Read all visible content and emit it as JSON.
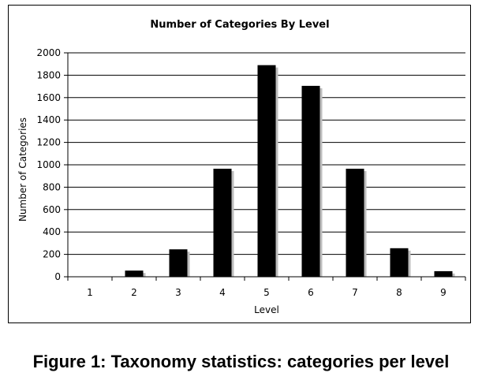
{
  "caption": "Figure 1: Taxonomy statistics: categories per level",
  "chart_data": {
    "type": "bar",
    "title": "Number of Categories By Level",
    "xlabel": "Level",
    "ylabel": "Number of Categories",
    "categories": [
      "1",
      "2",
      "3",
      "4",
      "5",
      "6",
      "7",
      "8",
      "9"
    ],
    "values": [
      0,
      55,
      245,
      965,
      1890,
      1705,
      965,
      255,
      50
    ],
    "ylim": [
      0,
      2000
    ],
    "yticks": [
      0,
      200,
      400,
      600,
      800,
      1000,
      1200,
      1400,
      1600,
      1800,
      2000
    ],
    "grid": true,
    "legend": "none",
    "colors": {
      "bar": "#000000",
      "shadow": "#bdbdbd",
      "grid": "#000000"
    }
  }
}
